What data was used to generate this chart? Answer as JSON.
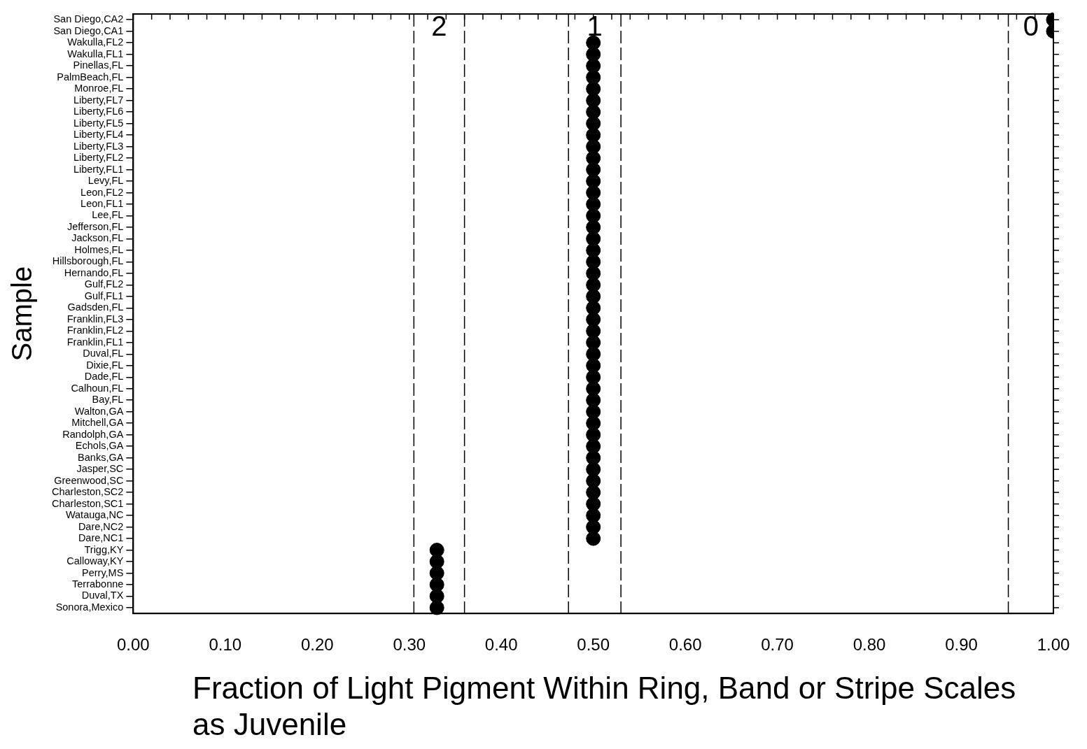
{
  "chart_data": {
    "type": "scatter",
    "orientation": "horizontal",
    "xlabel": "Fraction of Light Pigment Within Ring, Band or Stripe Scales as Juvenile",
    "ylabel": "Sample",
    "categories": [
      "San Diego,CA2",
      "San Diego,CA1",
      "Wakulla,FL2",
      "Wakulla,FL1",
      "Pinellas,FL",
      "PalmBeach,FL",
      "Monroe,FL",
      "Liberty,FL7",
      "Liberty,FL6",
      "Liberty,FL5",
      "Liberty,FL4",
      "Liberty,FL3",
      "Liberty,FL2",
      "Liberty,FL1",
      "Levy,FL",
      "Leon,FL2",
      "Leon,FL1",
      "Lee,FL",
      "Jefferson,FL",
      "Jackson,FL",
      "Holmes,FL",
      "Hillsborough,FL",
      "Hernando,FL",
      "Gulf,FL2",
      "Gulf,FL1",
      "Gadsden,FL",
      "Franklin,FL3",
      "Franklin,FL2",
      "Franklin,FL1",
      "Duval,FL",
      "Dixie,FL",
      "Dade,FL",
      "Calhoun,FL",
      "Bay,FL",
      "Walton,GA",
      "Mitchell,GA",
      "Randolph,GA",
      "Echols,GA",
      "Banks,GA",
      "Jasper,SC",
      "Greenwood,SC",
      "Charleston,SC2",
      "Charleston,SC1",
      "Watauga,NC",
      "Dare,NC2",
      "Dare,NC1",
      "Trigg,KY",
      "Calloway,KY",
      "Perry,MS",
      "Terrabonne",
      "Duval,TX",
      "Sonora,Mexico"
    ],
    "values": [
      1.0,
      1.0,
      0.5,
      0.5,
      0.5,
      0.5,
      0.5,
      0.5,
      0.5,
      0.5,
      0.5,
      0.5,
      0.5,
      0.5,
      0.5,
      0.5,
      0.5,
      0.5,
      0.5,
      0.5,
      0.5,
      0.5,
      0.5,
      0.5,
      0.5,
      0.5,
      0.5,
      0.5,
      0.5,
      0.5,
      0.5,
      0.5,
      0.5,
      0.5,
      0.5,
      0.5,
      0.5,
      0.5,
      0.5,
      0.5,
      0.5,
      0.5,
      0.5,
      0.5,
      0.5,
      0.5,
      0.33,
      0.33,
      0.33,
      0.33,
      0.33,
      0.33
    ],
    "color": "#000000",
    "marker": "circle",
    "legend": false,
    "xlim": [
      0,
      1
    ],
    "xticks": [
      {
        "value": 0,
        "label": "0.00"
      },
      {
        "value": 0.02,
        "label": null
      },
      {
        "value": 0.04,
        "label": null
      },
      {
        "value": 0.06,
        "label": null
      },
      {
        "value": 0.08,
        "label": null
      },
      {
        "value": 0.1,
        "label": "0.10"
      },
      {
        "value": 0.12,
        "label": null
      },
      {
        "value": 0.14,
        "label": null
      },
      {
        "value": 0.16,
        "label": null
      },
      {
        "value": 0.18,
        "label": null
      },
      {
        "value": 0.2,
        "label": "0.20"
      },
      {
        "value": 0.22,
        "label": null
      },
      {
        "value": 0.24,
        "label": null
      },
      {
        "value": 0.26,
        "label": null
      },
      {
        "value": 0.28,
        "label": null
      },
      {
        "value": 0.3,
        "label": "0.30"
      },
      {
        "value": 0.32,
        "label": null
      },
      {
        "value": 0.34,
        "label": null
      },
      {
        "value": 0.36,
        "label": null
      },
      {
        "value": 0.38,
        "label": null
      },
      {
        "value": 0.4,
        "label": "0.40"
      },
      {
        "value": 0.42,
        "label": null
      },
      {
        "value": 0.44,
        "label": null
      },
      {
        "value": 0.46,
        "label": null
      },
      {
        "value": 0.48,
        "label": null
      },
      {
        "value": 0.5,
        "label": "0.50"
      },
      {
        "value": 0.52,
        "label": null
      },
      {
        "value": 0.54,
        "label": null
      },
      {
        "value": 0.56,
        "label": null
      },
      {
        "value": 0.58,
        "label": null
      },
      {
        "value": 0.6,
        "label": "0.60"
      },
      {
        "value": 0.62,
        "label": null
      },
      {
        "value": 0.64,
        "label": null
      },
      {
        "value": 0.66,
        "label": null
      },
      {
        "value": 0.68,
        "label": null
      },
      {
        "value": 0.7,
        "label": "0.70"
      },
      {
        "value": 0.72,
        "label": null
      },
      {
        "value": 0.74,
        "label": null
      },
      {
        "value": 0.76,
        "label": null
      },
      {
        "value": 0.78,
        "label": null
      },
      {
        "value": 0.8,
        "label": "0.80"
      },
      {
        "value": 0.82,
        "label": null
      },
      {
        "value": 0.84,
        "label": null
      },
      {
        "value": 0.86,
        "label": null
      },
      {
        "value": 0.88,
        "label": null
      },
      {
        "value": 0.9,
        "label": "0.90"
      },
      {
        "value": 0.92,
        "label": null
      },
      {
        "value": 0.94,
        "label": null
      },
      {
        "value": 0.96,
        "label": null
      },
      {
        "value": 0.98,
        "label": null
      },
      {
        "value": 1,
        "label": "1.00"
      }
    ],
    "ref_lines": [
      {
        "axis": "x",
        "value": 0.305,
        "line_style": "dashed",
        "color": "#000000"
      },
      {
        "axis": "x",
        "value": 0.36,
        "line_style": "dashed",
        "color": "#000000"
      },
      {
        "axis": "x",
        "value": 0.473,
        "line_style": "dashed",
        "color": "#000000"
      },
      {
        "axis": "x",
        "value": 0.53,
        "line_style": "dashed",
        "color": "#000000"
      },
      {
        "axis": "x",
        "value": 0.951,
        "line_style": "dashed",
        "color": "#000000"
      }
    ],
    "annotations": [
      "2",
      "1",
      "0"
    ]
  }
}
